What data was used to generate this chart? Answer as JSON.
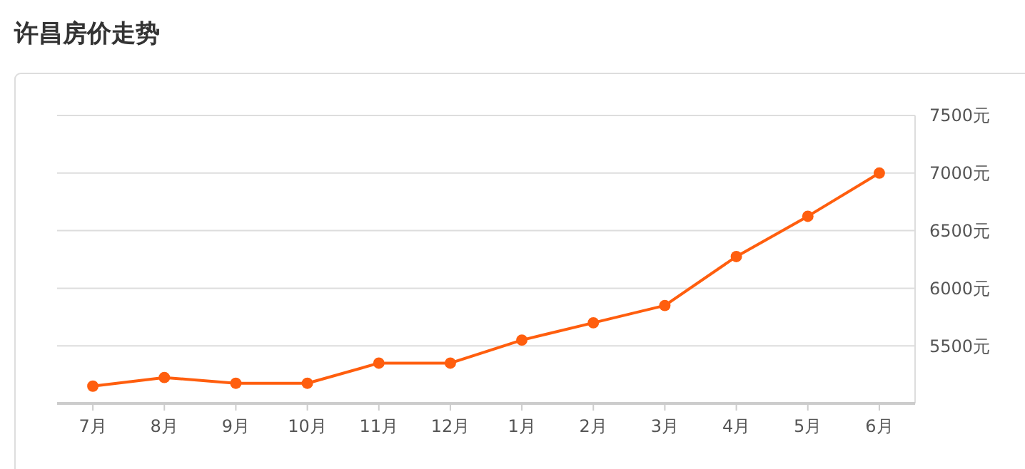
{
  "chart_data": {
    "type": "line",
    "title": "许昌房价走势",
    "categories": [
      "7月",
      "8月",
      "9月",
      "10月",
      "11月",
      "12月",
      "1月",
      "2月",
      "3月",
      "4月",
      "5月",
      "6月"
    ],
    "series": [
      {
        "color": "#ff5e0e",
        "values": [
          5150,
          5225,
          5175,
          5175,
          5350,
          5350,
          5550,
          5700,
          5850,
          6275,
          6625,
          7000
        ]
      }
    ],
    "ylim": [
      5000,
      7500
    ],
    "yticks": [
      {
        "value": 5500,
        "label": "5500元"
      },
      {
        "value": 6000,
        "label": "6000元"
      },
      {
        "value": 6500,
        "label": "6500元"
      },
      {
        "value": 7000,
        "label": "7000元"
      },
      {
        "value": 7500,
        "label": "7500元"
      }
    ],
    "grid": "y",
    "marker": "circle"
  }
}
